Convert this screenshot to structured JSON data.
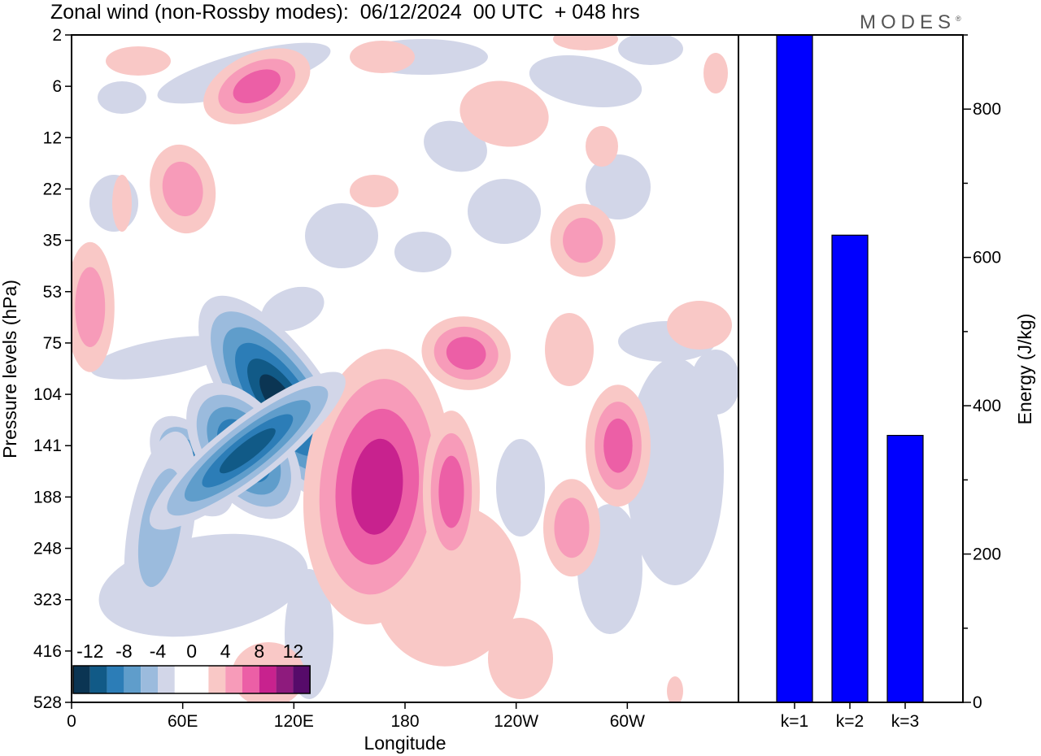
{
  "title": "Zonal wind (non-Rossby modes):  06/12/2024  00 UTC  + 048 hrs",
  "brand": "MODES",
  "chart_data": [
    {
      "type": "heatmap",
      "xlabel": "Longitude",
      "ylabel": "Pressure levels (hPa)",
      "x_ticks": [
        "0",
        "60E",
        "120E",
        "180",
        "120W",
        "60W"
      ],
      "x_tick_degrees": [
        0,
        60,
        120,
        180,
        240,
        300
      ],
      "xlim": [
        0,
        360
      ],
      "y_ticks": [
        "2",
        "6",
        "12",
        "22",
        "35",
        "53",
        "75",
        "104",
        "141",
        "188",
        "248",
        "323",
        "416",
        "528"
      ],
      "colorbar": {
        "labels": [
          "-12",
          "-8",
          "-4",
          "0",
          "4",
          "8",
          "12"
        ],
        "colors": [
          "#0b3553",
          "#115a87",
          "#2c7db7",
          "#5f9dcb",
          "#9bbbdd",
          "#d2d6e8",
          "#ffffff",
          "#ffffff",
          "#f9c8c6",
          "#f79bb9",
          "#ec5fa6",
          "#c8228e",
          "#8e1b7d",
          "#560b6a"
        ]
      },
      "features": [
        {
          "type": "negative",
          "lon": 112,
          "level_index": 7.1,
          "peak": -12
        },
        {
          "type": "negative",
          "lon": 65,
          "level_index": 8.4,
          "peak": -8
        },
        {
          "type": "negative",
          "lon": 93,
          "level_index": 8.1,
          "peak": -9
        },
        {
          "type": "negative",
          "lon": 48,
          "level_index": 9.6,
          "peak": -4
        },
        {
          "type": "positive",
          "lon": 165,
          "level_index": 8.8,
          "peak": 8
        },
        {
          "type": "positive",
          "lon": 205,
          "level_index": 8.9,
          "peak": 6
        },
        {
          "type": "positive",
          "lon": 213,
          "level_index": 6.2,
          "peak": 6
        },
        {
          "type": "positive",
          "lon": 295,
          "level_index": 8.0,
          "peak": 6
        },
        {
          "type": "positive",
          "lon": 270,
          "level_index": 9.6,
          "peak": 4
        },
        {
          "type": "positive",
          "lon": 100,
          "level_index": 1.0,
          "peak": 6
        },
        {
          "type": "positive",
          "lon": 60,
          "level_index": 3.0,
          "peak": 4
        },
        {
          "type": "positive",
          "lon": 10,
          "level_index": 5.3,
          "peak": 4
        },
        {
          "type": "positive",
          "lon": 276,
          "level_index": 4.0,
          "peak": 4
        }
      ]
    },
    {
      "type": "bar",
      "categories": [
        "k=1",
        "k=2",
        "k=3"
      ],
      "values": [
        900,
        630,
        360
      ],
      "ylabel": "Energy (J/kg)",
      "ylim": [
        0,
        900
      ],
      "y_ticks": [
        0,
        200,
        400,
        600,
        800
      ],
      "bar_color": "#0000ff"
    }
  ]
}
